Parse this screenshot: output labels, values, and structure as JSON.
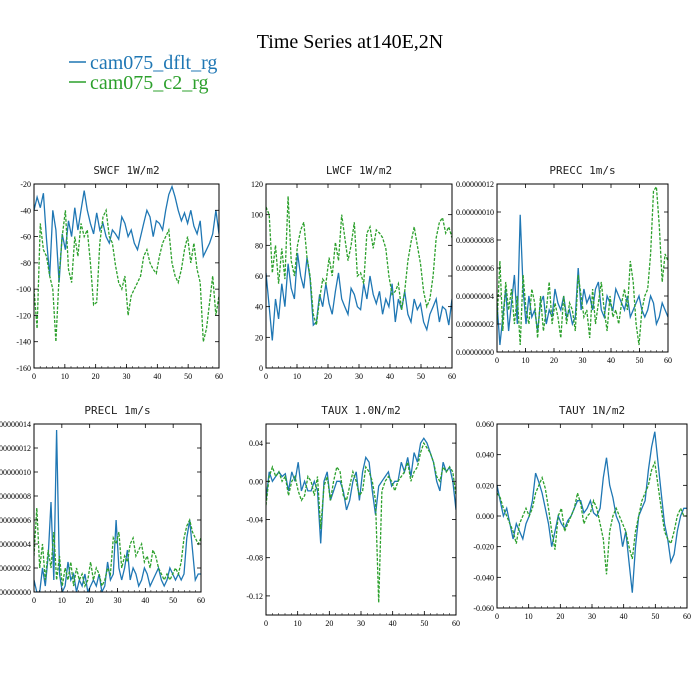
{
  "figure": {
    "title": "Time Series at140E,2N",
    "legend": [
      {
        "label": "cam075_dflt_rg",
        "color": "#1f77b4",
        "dash": "solid"
      },
      {
        "label": "cam075_c2_rg",
        "color": "#2ca02c",
        "dash": "dashed"
      }
    ]
  },
  "chart_data": [
    {
      "type": "line",
      "title": "SWCF   1W/m2",
      "xlim": [
        0,
        60
      ],
      "ylim": [
        -160,
        -20
      ],
      "xticks": [
        "0",
        "10",
        "20",
        "30",
        "40",
        "50",
        "60"
      ],
      "yticks": [
        "-20",
        "-40",
        "-60",
        "-80",
        "-100",
        "-120",
        "-140",
        "-160"
      ],
      "series": [
        {
          "name": "cam075_dflt_rg",
          "color": "#1f77b4",
          "dash": "solid",
          "values": [
            -40,
            -30,
            -38,
            -27,
            -62,
            -90,
            -40,
            -55,
            -95,
            -58,
            -70,
            -48,
            -60,
            -38,
            -55,
            -40,
            -25,
            -40,
            -50,
            -58,
            -42,
            -55,
            -50,
            -60,
            -65,
            -55,
            -58,
            -62,
            -45,
            -50,
            -60,
            -55,
            -65,
            -70,
            -60,
            -50,
            -40,
            -45,
            -60,
            -48,
            -50,
            -55,
            -40,
            -28,
            -22,
            -30,
            -40,
            -48,
            -42,
            -50,
            -40,
            -52,
            -58,
            -48,
            -75,
            -70,
            -65,
            -58,
            -40,
            -58
          ]
        },
        {
          "name": "cam075_c2_rg",
          "color": "#2ca02c",
          "dash": "dashed",
          "values": [
            -100,
            -130,
            -50,
            -70,
            -75,
            -90,
            -100,
            -140,
            -90,
            -60,
            -40,
            -85,
            -95,
            -60,
            -75,
            -50,
            -60,
            -55,
            -80,
            -112,
            -110,
            -65,
            -45,
            -40,
            -60,
            -65,
            -82,
            -95,
            -100,
            -90,
            -120,
            -105,
            -100,
            -95,
            -90,
            -75,
            -70,
            -80,
            -85,
            -88,
            -75,
            -65,
            -60,
            -55,
            -80,
            -90,
            -95,
            -85,
            -70,
            -60,
            -80,
            -65,
            -85,
            -95,
            -140,
            -130,
            -110,
            -90,
            -120,
            -105
          ]
        }
      ]
    },
    {
      "type": "line",
      "title": "LWCF   1W/m2",
      "xlim": [
        0,
        60
      ],
      "ylim": [
        0,
        120
      ],
      "xticks": [
        "0",
        "10",
        "20",
        "30",
        "40",
        "50",
        "60"
      ],
      "yticks": [
        "0",
        "20",
        "40",
        "60",
        "80",
        "100",
        "120"
      ],
      "series": [
        {
          "name": "cam075_dflt_rg",
          "color": "#1f77b4",
          "dash": "solid",
          "values": [
            62,
            40,
            18,
            45,
            32,
            55,
            40,
            68,
            52,
            45,
            75,
            60,
            52,
            72,
            58,
            28,
            30,
            48,
            40,
            55,
            42,
            35,
            50,
            62,
            45,
            40,
            35,
            52,
            48,
            40,
            38,
            55,
            45,
            60,
            48,
            42,
            50,
            35,
            45,
            40,
            55,
            30,
            45,
            38,
            50,
            35,
            30,
            45,
            38,
            42,
            30,
            25,
            35,
            40,
            45,
            30,
            40,
            38,
            28,
            45
          ]
        },
        {
          "name": "cam075_c2_rg",
          "color": "#2ca02c",
          "dash": "dashed",
          "values": [
            105,
            100,
            62,
            80,
            55,
            78,
            58,
            112,
            70,
            60,
            80,
            90,
            95,
            72,
            60,
            35,
            28,
            45,
            58,
            55,
            72,
            60,
            82,
            70,
            100,
            85,
            70,
            80,
            95,
            60,
            62,
            55,
            88,
            92,
            78,
            90,
            88,
            85,
            78,
            60,
            48,
            50,
            55,
            38,
            50,
            70,
            82,
            92,
            80,
            68,
            50,
            40,
            45,
            60,
            85,
            95,
            98,
            88,
            92,
            85
          ]
        }
      ]
    },
    {
      "type": "line",
      "title": "PRECC   1m/s",
      "xlim": [
        0,
        60
      ],
      "ylim": [
        0,
        1.2e-07
      ],
      "xticks": [
        "0",
        "10",
        "20",
        "30",
        "40",
        "50",
        "60"
      ],
      "yticks": [
        "0.00000012",
        "0.00000010",
        "0.00000008",
        "0.00000006",
        "0.00000004",
        "0.00000002",
        "0.00000000"
      ],
      "series": [
        {
          "name": "cam075_dflt_rg",
          "color": "#1f77b4",
          "dash": "solid",
          "values": [
            3.5e-08,
            5e-09,
            2.5e-08,
            4.5e-08,
            1.5e-08,
            3.5e-08,
            5.5e-08,
            2e-08,
            9.8e-08,
            4.5e-08,
            2e-08,
            4e-08,
            2.5e-08,
            3e-08,
            1.5e-08,
            3.5e-08,
            4e-08,
            2e-08,
            3e-08,
            2.5e-08,
            4.5e-08,
            3.5e-08,
            3e-08,
            4e-08,
            2.5e-08,
            3e-08,
            2e-08,
            2.5e-08,
            6e-08,
            3e-08,
            4.5e-08,
            3.5e-08,
            4e-08,
            3e-08,
            4.5e-08,
            5e-08,
            3e-08,
            2.5e-08,
            4e-08,
            3.5e-08,
            3e-08,
            4.5e-08,
            4e-08,
            3.5e-08,
            3e-08,
            4e-08,
            2.5e-08,
            3e-08,
            3.5e-08,
            4e-08,
            3e-08,
            2.5e-08,
            3e-08,
            4e-08,
            3.5e-08,
            2e-08,
            2.5e-08,
            3.5e-08,
            3e-08,
            2.5e-08
          ]
        },
        {
          "name": "cam075_c2_rg",
          "color": "#2ca02c",
          "dash": "dashed",
          "values": [
            2e-08,
            6.5e-08,
            1.5e-08,
            5e-08,
            3e-08,
            4.5e-08,
            2e-08,
            4e-08,
            5e-09,
            5.5e-08,
            3e-08,
            2e-08,
            4.5e-08,
            3.5e-08,
            1e-08,
            4e-08,
            1.5e-08,
            3e-08,
            5e-08,
            2e-08,
            3.5e-08,
            2.5e-08,
            1e-08,
            4e-08,
            2e-08,
            3.5e-08,
            3e-08,
            1.5e-08,
            5.5e-08,
            4e-08,
            2.5e-08,
            3e-08,
            1e-08,
            4.5e-08,
            2e-08,
            3.5e-08,
            5e-08,
            3e-08,
            1.5e-08,
            4e-08,
            2.5e-08,
            3e-08,
            2e-08,
            3.5e-08,
            4.5e-08,
            3e-08,
            6.5e-08,
            5e-08,
            2e-08,
            5e-09,
            3e-08,
            4e-08,
            4.5e-08,
            7e-08,
            1.15e-07,
            1.18e-07,
            9e-08,
            5e-08,
            7e-08,
            6.5e-08
          ]
        }
      ]
    },
    {
      "type": "line",
      "title": "PRECL   1m/s",
      "xlim": [
        0,
        60
      ],
      "ylim": [
        0,
        1.4e-07
      ],
      "xticks": [
        "0",
        "10",
        "20",
        "30",
        "40",
        "50",
        "60"
      ],
      "yticks": [
        "00000014",
        "00000012",
        "00000010",
        "00000008",
        "00000006",
        "00000004",
        "00000002",
        "00000000"
      ],
      "series": [
        {
          "name": "cam075_dflt_rg",
          "color": "#1f77b4",
          "dash": "solid",
          "values": [
            1e-08,
            0.0,
            0.0,
            2e-08,
            5e-09,
            3e-08,
            7.5e-08,
            1e-08,
            1.35e-07,
            1.5e-08,
            0.0,
            5e-09,
            2.5e-08,
            1e-08,
            1.5e-08,
            0.0,
            1e-08,
            5e-09,
            1.5e-08,
            0.0,
            5e-09,
            1e-08,
            5e-09,
            1.5e-08,
            0.0,
            5e-09,
            2.5e-08,
            1e-08,
            1.5e-08,
            6e-08,
            2e-08,
            1e-08,
            2e-08,
            3.5e-08,
            1e-08,
            2e-08,
            1.5e-08,
            5e-09,
            1e-08,
            2e-08,
            1.5e-08,
            5e-09,
            1e-08,
            1.5e-08,
            2e-08,
            1e-08,
            5e-09,
            1e-08,
            2e-08,
            1.5e-08,
            1e-08,
            1.5e-08,
            1e-08,
            1.5e-08,
            4.5e-08,
            6e-08,
            3.5e-08,
            1e-08,
            1.5e-08,
            1.5e-08
          ]
        },
        {
          "name": "cam075_c2_rg",
          "color": "#2ca02c",
          "dash": "dashed",
          "values": [
            3e-08,
            7e-08,
            2e-08,
            4e-08,
            1e-08,
            3.5e-08,
            2e-08,
            5e-08,
            1e-08,
            3e-08,
            5e-09,
            2e-08,
            1e-08,
            2.5e-08,
            5e-09,
            2e-08,
            1e-08,
            1.5e-08,
            5e-09,
            1e-08,
            2.5e-08,
            1e-08,
            2e-08,
            1.5e-08,
            5e-09,
            1e-08,
            2e-08,
            1.5e-08,
            4.5e-08,
            4e-08,
            5e-08,
            2e-08,
            3e-08,
            2.5e-08,
            4e-08,
            4.5e-08,
            3e-08,
            3.5e-08,
            4e-08,
            2.5e-08,
            3e-08,
            2e-08,
            3.5e-08,
            3e-08,
            2e-08,
            1.5e-08,
            1e-08,
            1.5e-08,
            1e-08,
            1.5e-08,
            2e-08,
            1.5e-08,
            2.5e-08,
            4.5e-08,
            5.5e-08,
            6e-08,
            5e-08,
            4.5e-08,
            4e-08,
            4.5e-08
          ]
        }
      ]
    },
    {
      "type": "line",
      "title": "TAUX   1.0N/m2",
      "xlim": [
        0,
        60
      ],
      "ylim": [
        -0.14,
        0.06
      ],
      "xticks": [
        "0",
        "10",
        "20",
        "30",
        "40",
        "50",
        "60"
      ],
      "yticks": [
        "0.04",
        "0.00",
        "-0.04",
        "-0.08",
        "-0.12"
      ],
      "series": [
        {
          "name": "cam075_dflt_rg",
          "color": "#1f77b4",
          "dash": "solid",
          "values": [
            -0.02,
            0.01,
            0.0,
            0.005,
            0.01,
            0.005,
            0.008,
            -0.01,
            0.01,
            0.0,
            0.02,
            -0.01,
            0.0,
            -0.01,
            -0.01,
            0.0,
            -0.01,
            -0.065,
            0.0,
            0.01,
            -0.02,
            -0.01,
            0.0,
            0.0,
            -0.01,
            -0.03,
            -0.02,
            0.0,
            0.01,
            -0.02,
            0.01,
            0.025,
            0.02,
            -0.01,
            -0.035,
            -0.005,
            0.0,
            0.005,
            0.01,
            -0.005,
            0.0,
            0.0,
            0.02,
            0.01,
            0.025,
            0.005,
            0.03,
            0.02,
            0.04,
            0.045,
            0.04,
            0.03,
            0.02,
            0.0,
            -0.01,
            0.02,
            0.01,
            0.015,
            0.0,
            -0.03
          ]
        },
        {
          "name": "cam075_c2_rg",
          "color": "#2ca02c",
          "dash": "dashed",
          "values": [
            -0.025,
            0.005,
            0.015,
            0.005,
            0.01,
            0.0,
            0.005,
            -0.015,
            0.0,
            0.005,
            -0.01,
            -0.02,
            -0.015,
            0.005,
            0.0,
            -0.015,
            0.005,
            -0.05,
            -0.005,
            0.005,
            -0.02,
            0.0,
            0.015,
            0.01,
            -0.015,
            -0.02,
            -0.005,
            0.01,
            0.0,
            -0.015,
            -0.01,
            0.015,
            0.01,
            0.0,
            -0.02,
            -0.127,
            -0.01,
            0.0,
            0.005,
            0.0,
            -0.01,
            0.0,
            0.005,
            0.01,
            0.02,
            0.0,
            0.01,
            0.015,
            0.03,
            0.04,
            0.035,
            0.03,
            0.02,
            0.005,
            0.0,
            0.015,
            0.01,
            0.015,
            0.01,
            -0.015
          ]
        }
      ]
    },
    {
      "type": "line",
      "title": "TAUY   1N/m2",
      "xlim": [
        0,
        60
      ],
      "ylim": [
        -0.06,
        0.06
      ],
      "xticks": [
        "0",
        "10",
        "20",
        "30",
        "40",
        "50",
        "60"
      ],
      "yticks": [
        "0.060",
        "0.040",
        "0.020",
        "0.000",
        "-0.020",
        "-0.040",
        "-0.060"
      ],
      "series": [
        {
          "name": "cam075_dflt_rg",
          "color": "#1f77b4",
          "dash": "solid",
          "values": [
            0.02,
            0.01,
            0.0,
            0.005,
            -0.005,
            -0.015,
            -0.005,
            -0.01,
            -0.015,
            -0.005,
            0.0,
            0.01,
            0.028,
            0.022,
            0.015,
            0.005,
            -0.005,
            -0.02,
            -0.01,
            0.0,
            -0.005,
            -0.008,
            -0.003,
            0.0,
            0.005,
            0.01,
            0.01,
            0.002,
            0.005,
            0.01,
            0.002,
            0.0,
            0.005,
            0.025,
            0.038,
            0.02,
            0.012,
            0.0,
            -0.005,
            -0.02,
            -0.01,
            -0.03,
            -0.05,
            -0.02,
            0.0,
            0.005,
            0.01,
            0.03,
            0.045,
            0.055,
            0.035,
            0.015,
            -0.005,
            -0.015,
            -0.03,
            -0.025,
            -0.01,
            0.0,
            0.005,
            0.005
          ]
        },
        {
          "name": "cam075_c2_rg",
          "color": "#2ca02c",
          "dash": "dashed",
          "values": [
            0.015,
            0.012,
            0.005,
            0.0,
            -0.005,
            -0.01,
            -0.018,
            -0.005,
            0.0,
            0.005,
            0.0,
            0.005,
            0.015,
            0.02,
            0.025,
            0.018,
            0.005,
            -0.01,
            -0.022,
            0.0,
            0.005,
            -0.01,
            -0.005,
            0.0,
            0.005,
            0.015,
            0.008,
            -0.005,
            0.0,
            0.002,
            0.01,
            0.005,
            -0.005,
            -0.015,
            -0.038,
            -0.01,
            0.0,
            0.005,
            0.0,
            -0.005,
            -0.01,
            -0.02,
            -0.028,
            -0.01,
            0.0,
            0.01,
            0.015,
            0.02,
            0.03,
            0.035,
            0.02,
            0.005,
            -0.01,
            -0.015,
            -0.018,
            -0.01,
            0.0,
            0.005,
            0.0,
            0.0
          ]
        }
      ]
    }
  ]
}
